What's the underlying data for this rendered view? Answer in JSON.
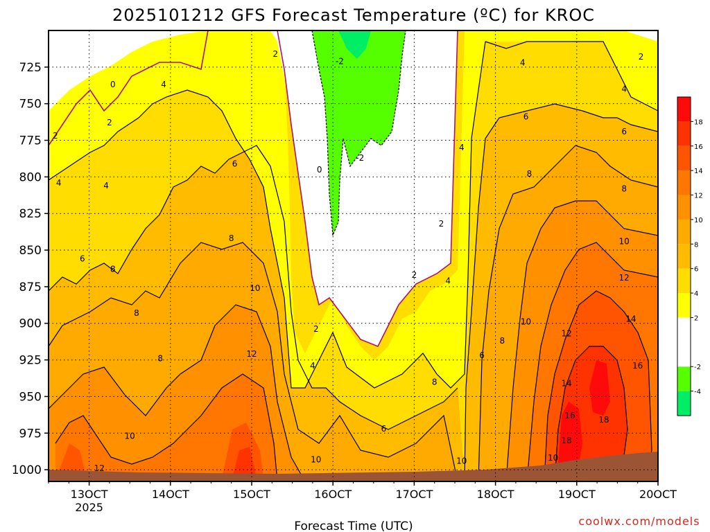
{
  "chart_data": {
    "type": "heatmap",
    "title": "2025101212 GFS Forecast Temperature (ºC) for KROC",
    "xlabel": "Forecast Time (UTC)",
    "ylabel": "",
    "credit": "coolwx.com/models",
    "y_ticks": [
      725,
      750,
      775,
      800,
      825,
      850,
      875,
      900,
      925,
      950,
      975,
      1000
    ],
    "ylim": [
      700,
      1008
    ],
    "x_ticks": [
      {
        "label": "13OCT",
        "sub": "2025",
        "hour": 0
      },
      {
        "label": "14OCT",
        "sub": "",
        "hour": 24
      },
      {
        "label": "15OCT",
        "sub": "",
        "hour": 48
      },
      {
        "label": "16OCT",
        "sub": "",
        "hour": 72
      },
      {
        "label": "17OCT",
        "sub": "",
        "hour": 96
      },
      {
        "label": "18OCT",
        "sub": "",
        "hour": 120
      },
      {
        "label": "19OCT",
        "sub": "",
        "hour": 144
      },
      {
        "label": "20OCT",
        "sub": "",
        "hour": 168
      }
    ],
    "xlim_hours": [
      -12,
      168
    ],
    "grid": true,
    "colorbar": {
      "placement": "right",
      "bands": [
        {
          "min": -6,
          "max": -4,
          "color": "#00ee66"
        },
        {
          "min": -4,
          "max": -2,
          "color": "#55ff00"
        },
        {
          "min": -2,
          "max": 2,
          "color": "#ffffff"
        },
        {
          "min": 2,
          "max": 4,
          "color": "#ffff00"
        },
        {
          "min": 4,
          "max": 6,
          "color": "#ffdd00"
        },
        {
          "min": 6,
          "max": 8,
          "color": "#ffbb00"
        },
        {
          "min": 8,
          "max": 10,
          "color": "#ffaa00"
        },
        {
          "min": 10,
          "max": 12,
          "color": "#ff9000"
        },
        {
          "min": 12,
          "max": 14,
          "color": "#ff7700"
        },
        {
          "min": 14,
          "max": 16,
          "color": "#ff5500"
        },
        {
          "min": 16,
          "max": 18,
          "color": "#ff3300"
        },
        {
          "min": 18,
          "max": 20,
          "color": "#ff0a0a"
        }
      ],
      "labels": [
        18,
        16,
        14,
        12,
        10,
        8,
        6,
        4,
        2,
        -2,
        -4
      ]
    },
    "terrain_color": "#9b5535",
    "contour_labels": [
      {
        "text": "0",
        "hour": 7,
        "p": 737
      },
      {
        "text": "2",
        "hour": -10,
        "p": 772
      },
      {
        "text": "4",
        "hour": -9,
        "p": 804
      },
      {
        "text": "4",
        "hour": 5,
        "p": 806
      },
      {
        "text": "2",
        "hour": 6,
        "p": 763
      },
      {
        "text": "4",
        "hour": 22,
        "p": 737
      },
      {
        "text": "6",
        "hour": -2,
        "p": 856
      },
      {
        "text": "8",
        "hour": 7,
        "p": 863
      },
      {
        "text": "8",
        "hour": 14,
        "p": 893
      },
      {
        "text": "8",
        "hour": 21,
        "p": 924
      },
      {
        "text": "6",
        "hour": 43,
        "p": 791
      },
      {
        "text": "8",
        "hour": 42,
        "p": 842
      },
      {
        "text": "10",
        "hour": 49,
        "p": 876
      },
      {
        "text": "12",
        "hour": 48,
        "p": 921
      },
      {
        "text": "2",
        "hour": 55,
        "p": 716
      },
      {
        "text": "0",
        "hour": 68,
        "p": 795
      },
      {
        "text": "-2",
        "hour": 74,
        "p": 721
      },
      {
        "text": "-2",
        "hour": 80,
        "p": 787
      },
      {
        "text": "2",
        "hour": 67,
        "p": 904
      },
      {
        "text": "4",
        "hour": 66,
        "p": 929
      },
      {
        "text": "2",
        "hour": 96,
        "p": 867
      },
      {
        "text": "2",
        "hour": 104,
        "p": 832
      },
      {
        "text": "4",
        "hour": 106,
        "p": 871
      },
      {
        "text": "4",
        "hour": 110,
        "p": 780
      },
      {
        "text": "8",
        "hour": 102,
        "p": 940
      },
      {
        "text": "6",
        "hour": 87,
        "p": 972
      },
      {
        "text": "10",
        "hour": 67,
        "p": 993
      },
      {
        "text": "10",
        "hour": 12,
        "p": 977
      },
      {
        "text": "12",
        "hour": 3,
        "p": 999
      },
      {
        "text": "10",
        "hour": 110,
        "p": 994
      },
      {
        "text": "6",
        "hour": 116,
        "p": 922
      },
      {
        "text": "8",
        "hour": 122,
        "p": 912
      },
      {
        "text": "10",
        "hour": 129,
        "p": 899
      },
      {
        "text": "4",
        "hour": 128,
        "p": 722
      },
      {
        "text": "6",
        "hour": 129,
        "p": 759
      },
      {
        "text": "8",
        "hour": 130,
        "p": 798
      },
      {
        "text": "12",
        "hour": 141,
        "p": 907
      },
      {
        "text": "14",
        "hour": 141,
        "p": 941
      },
      {
        "text": "16",
        "hour": 142,
        "p": 963
      },
      {
        "text": "18",
        "hour": 141,
        "p": 980
      },
      {
        "text": "10",
        "hour": 137,
        "p": 992
      },
      {
        "text": "18",
        "hour": 152,
        "p": 966
      },
      {
        "text": "16",
        "hour": 162,
        "p": 929
      },
      {
        "text": "14",
        "hour": 160,
        "p": 897
      },
      {
        "text": "12",
        "hour": 158,
        "p": 869
      },
      {
        "text": "10",
        "hour": 158,
        "p": 844
      },
      {
        "text": "8",
        "hour": 158,
        "p": 808
      },
      {
        "text": "6",
        "hour": 158,
        "p": 769
      },
      {
        "text": "4",
        "hour": 158,
        "p": 740
      },
      {
        "text": "2",
        "hour": 163,
        "p": 718
      }
    ]
  }
}
